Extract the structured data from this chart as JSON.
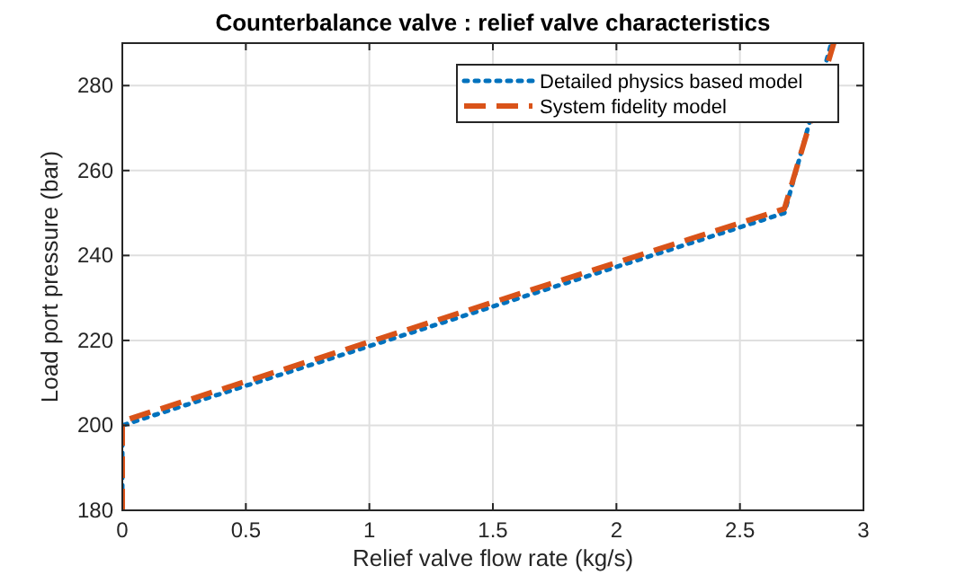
{
  "chart_data": {
    "type": "line",
    "title": "Counterbalance valve : relief valve characteristics",
    "xlabel": "Relief valve flow rate (kg/s)",
    "ylabel": "Load port pressure (bar)",
    "xlim": [
      0,
      3
    ],
    "ylim": [
      180,
      290
    ],
    "xticks": [
      0,
      0.5,
      1,
      1.5,
      2,
      2.5,
      3
    ],
    "yticks": [
      180,
      200,
      220,
      240,
      260,
      280
    ],
    "grid": true,
    "legend": "top right",
    "series": [
      {
        "name": "Detailed physics based model",
        "color": "#0072bd",
        "line_style": "dotted",
        "x": [
          0,
          0,
          2.68,
          2.87
        ],
        "values": [
          180,
          200,
          250,
          290
        ]
      },
      {
        "name": "System fidelity model",
        "color": "#d95319",
        "line_style": "dashed",
        "x": [
          0,
          0,
          2.68,
          2.88
        ],
        "values": [
          180,
          201,
          251,
          290
        ]
      }
    ]
  }
}
